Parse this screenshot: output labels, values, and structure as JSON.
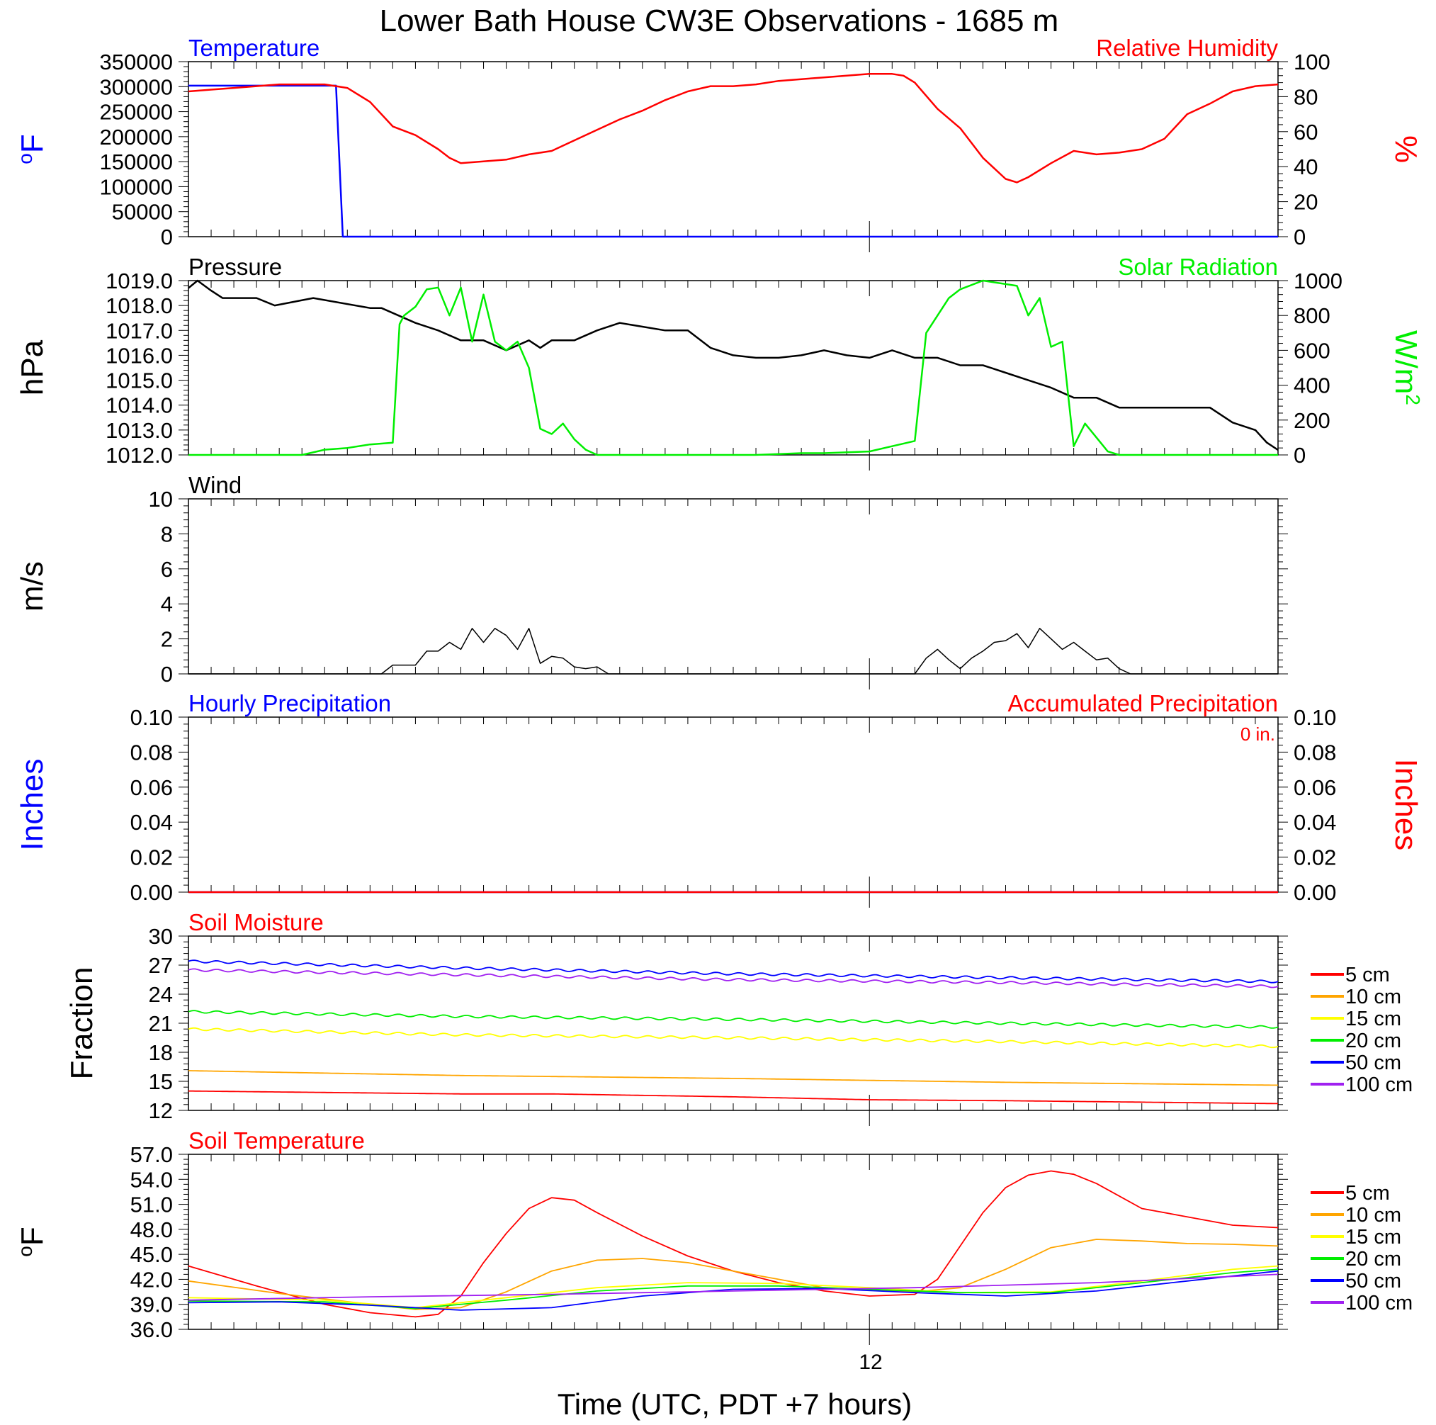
{
  "title": "Lower Bath House CW3E Observations - 1685 m",
  "x_axis": {
    "label": "Time (UTC, PDT +7 hours)",
    "tick_label": "12"
  },
  "colors": {
    "red": "#ff0000",
    "blue": "#0000ff",
    "green": "#00ee00",
    "black": "#000000",
    "orange": "#ffa500",
    "yellow": "#ffff00",
    "purple": "#a020f0"
  },
  "chart_data": [
    {
      "type": "line",
      "panel": "temperature-humidity",
      "left_title": "Temperature",
      "right_title": "Relative Humidity",
      "ylabel_left_main": "F",
      "ylabel_left_sup": "o",
      "ylabel_right": "%",
      "y_left_ticks": [
        "350000",
        "300000",
        "250000",
        "200000",
        "150000",
        "100000",
        "50000",
        "0"
      ],
      "y_right_ticks": [
        "100",
        "80",
        "60",
        "40",
        "20",
        "0"
      ],
      "ylim_left": [
        0,
        350000
      ],
      "ylim_right": [
        0,
        100
      ],
      "series": [
        {
          "name": "Temperature",
          "axis": "left",
          "color": "#0000ff",
          "x": [
            0,
            6.5,
            6.8,
            48
          ],
          "y": [
            302000,
            302000,
            0,
            0
          ]
        },
        {
          "name": "Relative Humidity",
          "axis": "right",
          "color": "#ff0000",
          "x": [
            0,
            1,
            2,
            3,
            4,
            5,
            6,
            6.5,
            7,
            8,
            9,
            10,
            11,
            11.5,
            12,
            13,
            14,
            15,
            16,
            17,
            18,
            19,
            20,
            21,
            22,
            23,
            24,
            25,
            26,
            27,
            28,
            29,
            30,
            31,
            31.5,
            32,
            33,
            34,
            35,
            36,
            36.5,
            37,
            38,
            39,
            40,
            41,
            42,
            43,
            44,
            45,
            46,
            47,
            48
          ],
          "y": [
            83,
            84,
            85,
            86,
            87,
            87,
            87,
            86,
            85,
            77,
            63,
            58,
            50,
            45,
            42,
            43,
            44,
            47,
            49,
            55,
            61,
            67,
            72,
            78,
            83,
            86,
            86,
            87,
            89,
            90,
            91,
            92,
            93,
            93,
            92,
            88,
            73,
            62,
            45,
            33,
            31,
            34,
            42,
            49,
            47,
            48,
            50,
            56,
            70,
            76,
            83,
            86,
            87
          ]
        }
      ]
    },
    {
      "type": "line",
      "panel": "pressure-solar",
      "left_title": "Pressure",
      "right_title": "Solar Radiation",
      "ylabel_left_main": "hPa",
      "ylabel_right_main": "W/m",
      "ylabel_right_sup": "2",
      "y_left_ticks": [
        "1019.0",
        "1018.0",
        "1017.0",
        "1016.0",
        "1015.0",
        "1014.0",
        "1013.0",
        "1012.0"
      ],
      "y_right_ticks": [
        "1000",
        "800",
        "600",
        "400",
        "200",
        "0"
      ],
      "ylim_left": [
        1012,
        1019
      ],
      "ylim_right": [
        0,
        1000
      ],
      "series": [
        {
          "name": "Pressure",
          "axis": "left",
          "color": "#000000",
          "x": [
            0,
            0.4,
            1,
            1.5,
            3,
            3.8,
            5.5,
            8,
            8.5,
            10,
            11,
            12,
            13,
            14,
            15,
            15.5,
            16,
            17,
            18,
            19,
            21,
            22,
            23,
            24,
            25,
            26,
            27,
            28,
            29,
            30,
            31,
            32,
            33,
            34,
            35,
            36,
            37,
            38,
            39,
            40,
            41,
            42,
            43,
            44,
            45,
            46,
            47,
            47.5,
            48
          ],
          "y": [
            1018.7,
            1019.0,
            1018.6,
            1018.3,
            1018.3,
            1018.0,
            1018.3,
            1017.9,
            1017.9,
            1017.3,
            1017.0,
            1016.6,
            1016.6,
            1016.2,
            1016.6,
            1016.3,
            1016.6,
            1016.6,
            1017.0,
            1017.3,
            1017.0,
            1017.0,
            1016.3,
            1016.0,
            1015.9,
            1015.9,
            1016.0,
            1016.2,
            1016.0,
            1015.9,
            1016.2,
            1015.9,
            1015.9,
            1015.6,
            1015.6,
            1015.3,
            1015.0,
            1014.7,
            1014.3,
            1014.3,
            1013.9,
            1013.9,
            1013.9,
            1013.9,
            1013.9,
            1013.3,
            1013.0,
            1012.5,
            1012.2
          ]
        },
        {
          "name": "Solar Radiation",
          "axis": "right",
          "color": "#00ee00",
          "x": [
            0,
            1,
            2,
            3,
            4,
            5,
            6,
            7,
            8,
            9,
            9.3,
            9.5,
            10,
            10.5,
            11,
            11.5,
            12,
            12.5,
            13,
            13.5,
            14,
            14.5,
            15,
            15.5,
            16,
            16.5,
            17,
            17.5,
            18,
            19,
            20,
            21,
            22,
            23,
            24,
            25,
            26,
            27,
            28,
            30,
            31,
            32,
            32.5,
            33,
            33.5,
            34,
            35,
            36,
            36.5,
            37,
            37.5,
            38,
            38.5,
            39,
            39.5,
            40,
            40.5,
            41,
            41.5,
            42,
            42.5,
            43,
            44,
            45,
            46,
            47,
            48
          ],
          "y": [
            0,
            0,
            0,
            0,
            0,
            0,
            30,
            40,
            60,
            70,
            750,
            800,
            850,
            950,
            960,
            800,
            960,
            650,
            920,
            650,
            600,
            650,
            500,
            150,
            120,
            180,
            90,
            30,
            0,
            0,
            0,
            0,
            0,
            0,
            0,
            0,
            5,
            10,
            10,
            20,
            50,
            80,
            700,
            800,
            900,
            950,
            1000,
            980,
            970,
            800,
            900,
            620,
            650,
            50,
            180,
            100,
            20,
            0,
            0,
            0,
            0,
            0,
            0,
            0,
            0,
            0,
            0
          ]
        }
      ]
    },
    {
      "type": "line",
      "panel": "wind",
      "left_title": "Wind",
      "ylabel_left_main": "m/s",
      "y_left_ticks": [
        "10",
        "8",
        "6",
        "4",
        "2",
        "0"
      ],
      "ylim_left": [
        0,
        10
      ],
      "series": [
        {
          "name": "Wind",
          "axis": "left",
          "color": "#000000",
          "x": [
            0,
            8.5,
            9,
            10,
            10.5,
            11,
            11.5,
            12,
            12.5,
            13,
            13.5,
            14,
            14.5,
            15,
            15.5,
            16,
            16.5,
            17,
            17.5,
            18,
            18.5,
            31.5,
            32,
            32.5,
            33,
            33.5,
            34,
            34.5,
            35,
            35.5,
            36,
            36.5,
            37,
            37.5,
            38,
            38.5,
            39,
            39.5,
            40,
            40.5,
            41,
            41.5,
            42,
            48
          ],
          "y": [
            0,
            0,
            0.5,
            0.5,
            1.3,
            1.3,
            1.8,
            1.4,
            2.6,
            1.8,
            2.6,
            2.2,
            1.4,
            2.6,
            0.6,
            1.0,
            0.9,
            0.4,
            0.3,
            0.4,
            0,
            0,
            0,
            0.9,
            1.4,
            0.8,
            0.3,
            0.9,
            1.3,
            1.8,
            1.9,
            2.3,
            1.5,
            2.6,
            2.0,
            1.4,
            1.8,
            1.3,
            0.8,
            0.9,
            0.3,
            0,
            0,
            0
          ]
        }
      ]
    },
    {
      "type": "line",
      "panel": "precipitation",
      "left_title": "Hourly Precipitation",
      "right_title": "Accumulated Precipitation",
      "annotation": "0 in.",
      "ylabel_left_main": "Inches",
      "ylabel_right_main": "Inches",
      "y_left_ticks": [
        "0.10",
        "0.08",
        "0.06",
        "0.04",
        "0.02",
        "0.00"
      ],
      "y_right_ticks": [
        "0.10",
        "0.08",
        "0.06",
        "0.04",
        "0.02",
        "0.00"
      ],
      "ylim_left": [
        0,
        0.1
      ],
      "ylim_right": [
        0,
        0.1
      ],
      "series": [
        {
          "name": "Hourly Precipitation",
          "axis": "left",
          "color": "#0000ff",
          "x": [
            0,
            48
          ],
          "y": [
            0,
            0
          ]
        },
        {
          "name": "Accumulated Precipitation",
          "axis": "right",
          "color": "#ff0000",
          "x": [
            0,
            48
          ],
          "y": [
            0,
            0
          ]
        }
      ]
    },
    {
      "type": "line",
      "panel": "soil-moisture",
      "left_title": "Soil Moisture",
      "ylabel_left_main": "Fraction",
      "y_left_ticks": [
        "30",
        "27",
        "24",
        "21",
        "18",
        "15",
        "12"
      ],
      "ylim_left": [
        12,
        30
      ],
      "legend": [
        "5 cm",
        "10 cm",
        "15 cm",
        "20 cm",
        "50 cm",
        "100 cm"
      ],
      "legend_colors": [
        "#ff0000",
        "#ffa500",
        "#ffff00",
        "#00ee00",
        "#0000ff",
        "#a020f0"
      ],
      "series": [
        {
          "name": "5 cm",
          "axis": "left",
          "color": "#ff0000",
          "x": [
            0,
            12,
            16,
            24,
            30,
            36,
            48
          ],
          "y": [
            14.0,
            13.7,
            13.7,
            13.4,
            13.1,
            13.0,
            12.7
          ]
        },
        {
          "name": "10 cm",
          "axis": "left",
          "color": "#ffa500",
          "x": [
            0,
            12,
            24,
            36,
            48
          ],
          "y": [
            16.1,
            15.6,
            15.3,
            14.9,
            14.6
          ]
        },
        {
          "name": "15 cm",
          "axis": "left",
          "color": "#ffff00",
          "x": [
            0,
            12,
            24,
            36,
            48
          ],
          "y": [
            20.4,
            19.8,
            19.5,
            19.1,
            18.6
          ]
        },
        {
          "name": "20 cm",
          "axis": "left",
          "color": "#00ee00",
          "x": [
            0,
            12,
            24,
            36,
            48
          ],
          "y": [
            22.2,
            21.7,
            21.4,
            21.0,
            20.6
          ]
        },
        {
          "name": "50 cm",
          "axis": "left",
          "color": "#0000ff",
          "x": [
            0,
            12,
            24,
            36,
            48
          ],
          "y": [
            27.4,
            26.7,
            26.1,
            25.7,
            25.3
          ]
        },
        {
          "name": "100 cm",
          "axis": "left",
          "color": "#a020f0",
          "x": [
            0,
            12,
            24,
            36,
            48
          ],
          "y": [
            26.5,
            26.0,
            25.5,
            25.2,
            24.8
          ]
        }
      ]
    },
    {
      "type": "line",
      "panel": "soil-temperature",
      "left_title": "Soil Temperature",
      "ylabel_left_main": "F",
      "ylabel_left_sup": "o",
      "y_left_ticks": [
        "57.0",
        "54.0",
        "51.0",
        "48.0",
        "45.0",
        "42.0",
        "39.0",
        "36.0"
      ],
      "ylim_left": [
        36,
        57
      ],
      "legend": [
        "5 cm",
        "10 cm",
        "15 cm",
        "20 cm",
        "50 cm",
        "100 cm"
      ],
      "legend_colors": [
        "#ff0000",
        "#ffa500",
        "#ffff00",
        "#00ee00",
        "#0000ff",
        "#a020f0"
      ],
      "series": [
        {
          "name": "5 cm",
          "axis": "left",
          "color": "#ff0000",
          "x": [
            0,
            3,
            6,
            8,
            10,
            11,
            12,
            13,
            14,
            15,
            16,
            17,
            18,
            20,
            22,
            24,
            26,
            28,
            30,
            32,
            33,
            34,
            35,
            36,
            37,
            38,
            39,
            40,
            41,
            42,
            44,
            46,
            48
          ],
          "y": [
            43.6,
            41.2,
            39.0,
            38.0,
            37.5,
            37.8,
            40.0,
            44.0,
            47.5,
            50.5,
            51.8,
            51.5,
            50.0,
            47.2,
            44.8,
            43.0,
            41.6,
            40.6,
            40.0,
            40.2,
            42.0,
            46.0,
            50.0,
            53.0,
            54.5,
            55.0,
            54.6,
            53.5,
            52.0,
            50.5,
            49.5,
            48.5,
            48.2
          ]
        },
        {
          "name": "10 cm",
          "axis": "left",
          "color": "#ffa500",
          "x": [
            0,
            4,
            8,
            10,
            12,
            14,
            16,
            18,
            20,
            22,
            24,
            26,
            28,
            30,
            32,
            34,
            36,
            38,
            40,
            42,
            44,
            46,
            48
          ],
          "y": [
            41.8,
            40.3,
            39.0,
            38.4,
            38.6,
            40.5,
            43.0,
            44.3,
            44.5,
            44.0,
            43.0,
            42.0,
            41.0,
            40.8,
            40.5,
            41.0,
            43.2,
            45.8,
            46.8,
            46.6,
            46.3,
            46.2,
            46.0
          ]
        },
        {
          "name": "15 cm",
          "axis": "left",
          "color": "#ffff00",
          "x": [
            0,
            6,
            10,
            14,
            18,
            22,
            26,
            30,
            34,
            38,
            42,
            46,
            48
          ],
          "y": [
            39.8,
            39.5,
            38.6,
            39.8,
            41.0,
            41.6,
            41.5,
            41.0,
            40.4,
            40.5,
            41.8,
            43.2,
            43.6
          ]
        },
        {
          "name": "20 cm",
          "axis": "left",
          "color": "#00ee00",
          "x": [
            0,
            6,
            10,
            14,
            18,
            22,
            26,
            30,
            34,
            38,
            42,
            46,
            48
          ],
          "y": [
            39.4,
            39.3,
            38.5,
            39.5,
            40.6,
            41.2,
            41.2,
            40.8,
            40.4,
            40.4,
            41.6,
            42.8,
            43.2
          ]
        },
        {
          "name": "50 cm",
          "axis": "left",
          "color": "#0000ff",
          "x": [
            0,
            4,
            8,
            12,
            16,
            20,
            24,
            28,
            32,
            36,
            40,
            44,
            48
          ],
          "y": [
            39.2,
            39.3,
            38.9,
            38.3,
            38.6,
            40.0,
            40.8,
            40.9,
            40.4,
            40.0,
            40.6,
            41.8,
            43.0
          ]
        },
        {
          "name": "100 cm",
          "axis": "left",
          "color": "#a020f0",
          "x": [
            0,
            8,
            16,
            24,
            32,
            40,
            48
          ],
          "y": [
            39.5,
            39.9,
            40.2,
            40.6,
            41.0,
            41.6,
            42.6
          ]
        }
      ]
    }
  ]
}
